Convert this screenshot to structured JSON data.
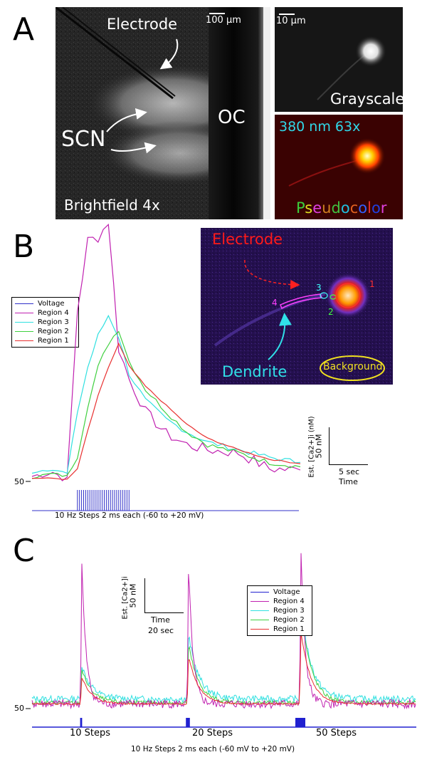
{
  "panel_labels": {
    "a": "A",
    "b": "B",
    "c": "C"
  },
  "panel_a": {
    "brightfield": {
      "electrode_label": "Electrode",
      "scalebar_label": "100 µm",
      "scn_label": "SCN",
      "oc_label": "OC",
      "caption": "Brightfield 4x"
    },
    "grayscale": {
      "scalebar_label": "10 µm",
      "caption": "Grayscale"
    },
    "pseudo": {
      "title": "380 nm 63x",
      "caption_letters": [
        "P",
        "s",
        "e",
        "u",
        "d",
        "o",
        "c",
        "o",
        "l",
        "o",
        "r"
      ],
      "caption_colors": [
        "#3cd03c",
        "#e0e020",
        "#e040e0",
        "#d08020",
        "#40c040",
        "#20c0e0",
        "#e06020",
        "#3060ff",
        "#e03030",
        "#2040e0",
        "#e040e0"
      ]
    }
  },
  "panel_b_image": {
    "electrode_label": "Electrode",
    "dendrite_label": "Dendrite",
    "background_label": "Background",
    "region_numbers": [
      "1",
      "2",
      "3",
      "4"
    ],
    "region_number_colors": [
      "#ff3030",
      "#40ff40",
      "#40ffff",
      "#ff40ff"
    ]
  },
  "chart_data": [
    {
      "type": "line",
      "panel": "B",
      "title": "",
      "xlabel": "Time",
      "ylabel": "Est. [Ca2+]i (nM)",
      "y_tick_labels": [
        "50"
      ],
      "scalebar": {
        "y_label": "50 nM",
        "x_label": "5 sec",
        "x_axis": "Time",
        "y_axis": "Est. [Ca2+]i (nM)"
      },
      "stimulus_label": "10 Hz Steps 2 ms each (-60 to +20 mV)",
      "legend_position": "left",
      "colors": {
        "Voltage": "#3030c8",
        "Region 4": "#c020b0",
        "Region 3": "#30e0e0",
        "Region 2": "#40d040",
        "Region 1": "#e83030"
      },
      "x_sec": [
        0,
        2,
        3.4,
        4.4,
        5.4,
        6.4,
        7.4,
        8.4,
        9.4,
        11,
        13,
        15,
        17,
        20,
        23,
        26
      ],
      "stim_sec": [
        4.4,
        9.4
      ],
      "series": [
        {
          "name": "Voltage",
          "values": []
        },
        {
          "name": "Region 4",
          "values": [
            58,
            65,
            52,
            320,
            430,
            435,
            460,
            260,
            212,
            160,
            125,
            108,
            100,
            95,
            70,
            68
          ]
        },
        {
          "name": "Region 3",
          "values": [
            65,
            70,
            62,
            160,
            230,
            280,
            312,
            278,
            220,
            178,
            148,
            128,
            112,
            100,
            88,
            80
          ]
        },
        {
          "name": "Region 2",
          "values": [
            57,
            62,
            58,
            90,
            170,
            230,
            268,
            290,
            240,
            195,
            160,
            128,
            108,
            95,
            80,
            73
          ]
        },
        {
          "name": "Region 1",
          "values": [
            55,
            55,
            53,
            70,
            130,
            185,
            230,
            267,
            232,
            200,
            170,
            140,
            118,
            100,
            85,
            78
          ]
        }
      ]
    },
    {
      "type": "line",
      "panel": "C",
      "title": "",
      "xlabel": "Time",
      "ylabel": "Est. [Ca2+]i",
      "y_tick_labels": [
        "50"
      ],
      "scalebar": {
        "y_label": "50 nM",
        "x_label": "20 sec",
        "x_axis": "Time",
        "y_axis": "Est. [Ca2+]i"
      },
      "stimulus_label": "10 Hz Steps 2 ms each (-60 mV to +20 mV)",
      "stimulus_categories": [
        "10 Steps",
        "20 Steps",
        "50 Steps"
      ],
      "legend_position": "top-right",
      "colors": {
        "Voltage": "#2020d0",
        "Region 4": "#c020b0",
        "Region 3": "#30e0e0",
        "Region 2": "#40d040",
        "Region 1": "#e83030"
      },
      "peaks_nM": [
        {
          "stim": "10 Steps",
          "t_sec": 35,
          "Region 4": 420,
          "Region 3": 160,
          "Region 2": 150,
          "Region 1": 130
        },
        {
          "stim": "20 Steps",
          "t_sec": 110,
          "Region 4": 420,
          "Region 3": 240,
          "Region 2": 215,
          "Region 1": 185
        },
        {
          "stim": "50 Steps",
          "t_sec": 189,
          "Region 4": 450,
          "Region 3": 320,
          "Region 2": 310,
          "Region 1": 245
        }
      ],
      "baseline_nM": {
        "Region 4": 62,
        "Region 3": 75,
        "Region 2": 65,
        "Region 1": 62
      },
      "series": [
        {
          "name": "Voltage"
        },
        {
          "name": "Region 4"
        },
        {
          "name": "Region 3"
        },
        {
          "name": "Region 2"
        },
        {
          "name": "Region 1"
        }
      ]
    }
  ]
}
